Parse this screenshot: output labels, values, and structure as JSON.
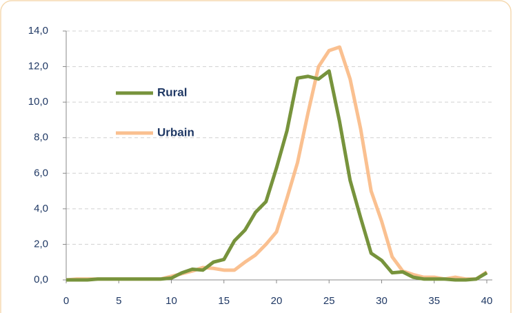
{
  "chart_data": {
    "type": "line",
    "x": [
      0,
      1,
      2,
      3,
      4,
      5,
      6,
      7,
      8,
      9,
      10,
      11,
      12,
      13,
      14,
      15,
      16,
      17,
      18,
      19,
      20,
      21,
      22,
      23,
      24,
      25,
      26,
      27,
      28,
      29,
      30,
      31,
      32,
      33,
      34,
      35,
      36,
      37,
      38,
      39,
      40
    ],
    "series": [
      {
        "name": "Rural",
        "color": "#77933c",
        "values": [
          0,
          0,
          0,
          0.05,
          0.05,
          0.05,
          0.05,
          0.05,
          0.05,
          0.05,
          0.1,
          0.4,
          0.6,
          0.55,
          1.0,
          1.15,
          2.2,
          2.8,
          3.8,
          4.4,
          6.3,
          8.4,
          11.35,
          11.45,
          11.3,
          11.75,
          8.9,
          5.6,
          3.5,
          1.5,
          1.1,
          0.4,
          0.45,
          0.15,
          0.05,
          0.05,
          0.05,
          0,
          0,
          0.05,
          0.4
        ]
      },
      {
        "name": "Urbain",
        "color": "#fac090",
        "values": [
          0,
          0.05,
          0.05,
          0.05,
          0.05,
          0.05,
          0.05,
          0.05,
          0.05,
          0.05,
          0.2,
          0.35,
          0.5,
          0.7,
          0.65,
          0.55,
          0.55,
          1.0,
          1.4,
          2.0,
          2.7,
          4.6,
          6.6,
          9.4,
          12.0,
          12.9,
          13.1,
          11.3,
          8.5,
          5.0,
          3.3,
          1.3,
          0.5,
          0.3,
          0.15,
          0.15,
          0.05,
          0.15,
          0.05,
          0.05,
          0.45
        ]
      }
    ],
    "xlim": [
      0,
      40
    ],
    "xticks": [
      0,
      5,
      10,
      15,
      20,
      25,
      30,
      35,
      40
    ],
    "ylim": [
      0,
      14
    ],
    "yticks": [
      {
        "value": 0,
        "label": "0,0"
      },
      {
        "value": 2,
        "label": "2,0"
      },
      {
        "value": 4,
        "label": "4,0"
      },
      {
        "value": 6,
        "label": "6,0"
      },
      {
        "value": 8,
        "label": "8,0"
      },
      {
        "value": 10,
        "label": "10,0"
      },
      {
        "value": 12,
        "label": "12,0"
      },
      {
        "value": 14,
        "label": "14,0"
      }
    ],
    "grid": true
  }
}
